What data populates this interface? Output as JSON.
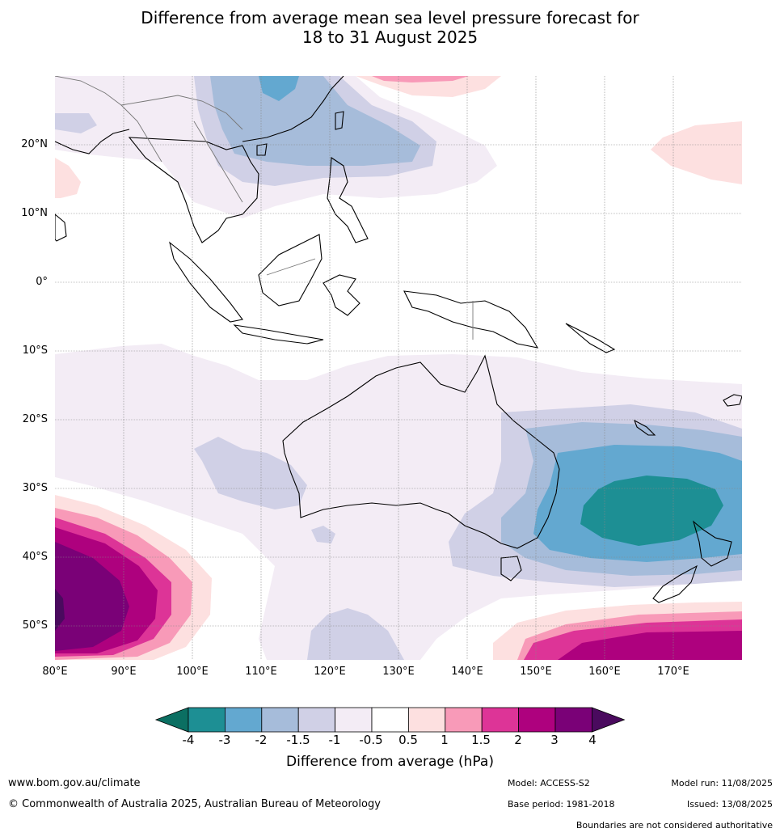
{
  "title_line1": "Difference from average mean sea level pressure forecast for",
  "title_line2": "18 to 31 August 2025",
  "lat_labels": [
    "20°N",
    "10°N",
    "0°",
    "10°S",
    "20°S",
    "30°S",
    "40°S",
    "50°S"
  ],
  "lon_labels": [
    "80°E",
    "90°E",
    "100°E",
    "110°E",
    "120°E",
    "130°E",
    "140°E",
    "150°E",
    "160°E",
    "170°E"
  ],
  "colorbar": {
    "title": "Difference from average (hPa)",
    "ticks": [
      "-4",
      "-3",
      "-2",
      "-1.5",
      "-1",
      "-0.5",
      "0.5",
      "1",
      "1.5",
      "2",
      "3",
      "4"
    ],
    "under_color": "#0b6f62",
    "over_color": "#4a0a5e",
    "colors": [
      "#1d8f94",
      "#63a8d0",
      "#a6bcda",
      "#d0d0e6",
      "#f3ecf5",
      "#ffffff",
      "#fde0e0",
      "#f89ab8",
      "#dd3497",
      "#ae017e",
      "#7a0177"
    ]
  },
  "footer": {
    "website": "www.bom.gov.au/climate",
    "copyright": "© Commonwealth of Australia 2025, Australian Bureau of Meteorology",
    "model": "Model: ACCESS-S2",
    "base_period": "Base period: 1981-2018",
    "model_run": "Model run: 11/08/2025",
    "issued": "Issued: 13/08/2025",
    "disclaimer": "Boundaries are not considered authoritative"
  }
}
